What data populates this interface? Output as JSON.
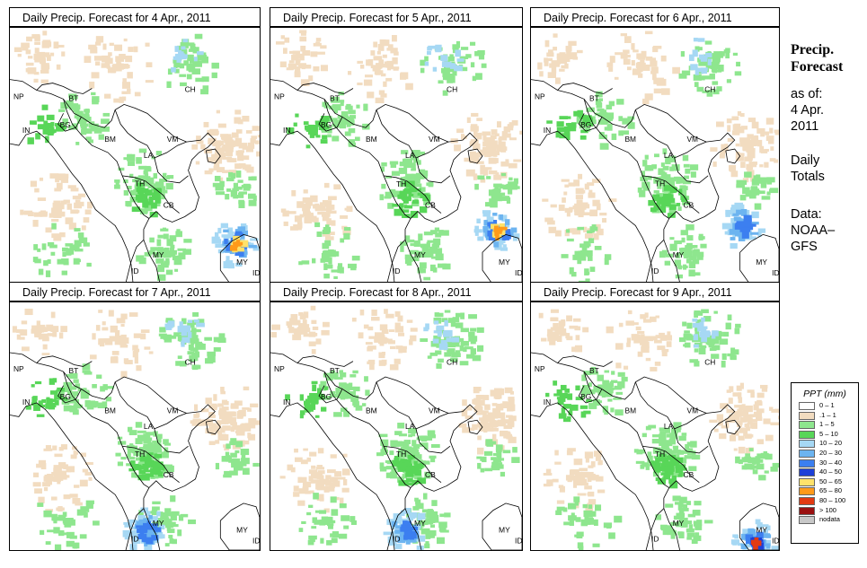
{
  "panels": [
    {
      "title": "Daily Precip. Forecast for  4 Apr., 2011"
    },
    {
      "title": "Daily Precip. Forecast for  5 Apr., 2011"
    },
    {
      "title": "Daily Precip. Forecast for  6 Apr., 2011"
    },
    {
      "title": "Daily Precip. Forecast for  7 Apr., 2011"
    },
    {
      "title": "Daily Precip. Forecast for  8 Apr., 2011"
    },
    {
      "title": "Daily Precip. Forecast for  9 Apr., 2011"
    }
  ],
  "country_labels": {
    "NP": "NP",
    "BT": "BT",
    "IN": "IN",
    "BG": "BG",
    "BM": "BM",
    "CH": "CH",
    "VM": "VM",
    "LA": "LA",
    "TH": "TH",
    "CB": "CB",
    "MY": "MY",
    "ID": "ID"
  },
  "sidebar": {
    "heading1": "Precip.",
    "heading2": "Forecast",
    "asof": "as of:",
    "date1": "4 Apr.",
    "date2": "2011",
    "totals1": "Daily",
    "totals2": "Totals",
    "data1": "Data:",
    "data2": "NOAA–",
    "data3": "GFS"
  },
  "legend": {
    "title": "PPT (mm)",
    "items": [
      {
        "label": "0 – 1",
        "color": "#ffffff"
      },
      {
        "label": ".1 – 1",
        "color": "#f2dcc0"
      },
      {
        "label": "1 – 5",
        "color": "#8ee68e"
      },
      {
        "label": "5 – 10",
        "color": "#58d658"
      },
      {
        "label": "10 – 20",
        "color": "#a6d8f4"
      },
      {
        "label": "20 – 30",
        "color": "#6cb4f0"
      },
      {
        "label": "30 – 40",
        "color": "#3c7ff0"
      },
      {
        "label": "40 – 50",
        "color": "#1d40d8"
      },
      {
        "label": "50 – 65",
        "color": "#ffe26a"
      },
      {
        "label": "65 – 80",
        "color": "#ff9a1a"
      },
      {
        "label": "80 – 100",
        "color": "#e23a12"
      },
      {
        "label": "> 100",
        "color": "#9a1010"
      },
      {
        "label": "nodata",
        "color": "#c8c8c8"
      }
    ]
  }
}
